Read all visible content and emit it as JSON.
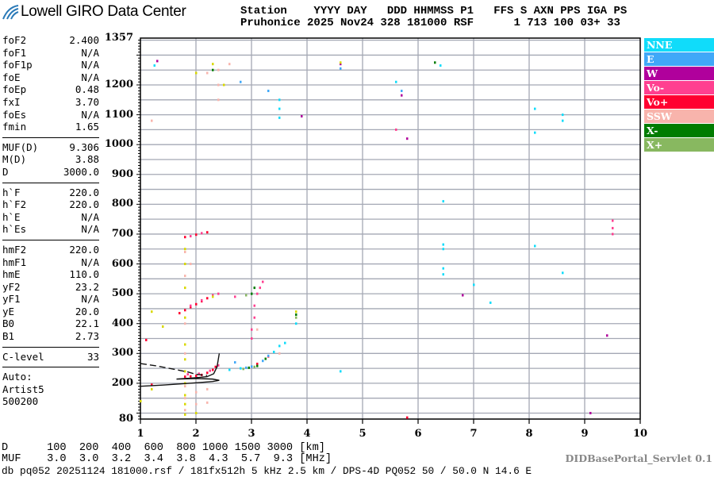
{
  "header": {
    "brand": "Lowell GIRO Data Center",
    "line1": "Station    YYYY DAY   DDD HHMMSS P1   FFS S AXN PPS IGA PS",
    "line2": "Pruhonice 2025 Nov24 328 181000 RSF      1 713 100 03+ 33"
  },
  "params": [
    [
      {
        "k": "foF2",
        "v": "2.400"
      },
      {
        "k": "foF1",
        "v": "N/A"
      },
      {
        "k": "foF1p",
        "v": "N/A"
      },
      {
        "k": "foE",
        "v": "N/A"
      },
      {
        "k": "foEp",
        "v": "0.48"
      },
      {
        "k": "fxI",
        "v": "3.70"
      },
      {
        "k": "foEs",
        "v": "N/A"
      },
      {
        "k": "fmin",
        "v": "1.65"
      }
    ],
    [
      {
        "k": "MUF(D)",
        "v": "9.306"
      },
      {
        "k": "M(D)",
        "v": "3.88"
      },
      {
        "k": "D",
        "v": "3000.0"
      }
    ],
    [
      {
        "k": "h`F",
        "v": "220.0"
      },
      {
        "k": "h`F2",
        "v": "220.0"
      },
      {
        "k": "h`E",
        "v": "N/A"
      },
      {
        "k": "h`Es",
        "v": "N/A"
      }
    ],
    [
      {
        "k": "hmF2",
        "v": "220.0"
      },
      {
        "k": "hmF1",
        "v": "N/A"
      },
      {
        "k": "hmE",
        "v": "110.0"
      },
      {
        "k": "yF2",
        "v": "23.2"
      },
      {
        "k": "yF1",
        "v": "N/A"
      },
      {
        "k": "yE",
        "v": "20.0"
      },
      {
        "k": "B0",
        "v": "22.1"
      },
      {
        "k": "B1",
        "v": "2.73"
      }
    ],
    [
      {
        "k": "C-level",
        "v": "33"
      }
    ],
    [
      {
        "k": "Auto:",
        "v": ""
      },
      {
        "k": "Artist5",
        "v": ""
      },
      {
        "k": "500200",
        "v": ""
      }
    ]
  ],
  "footer": {
    "d_row": "D      100  200  400  600  800 1000 1500 3000 [km]",
    "muf_row": "MUF    3.0  3.0  3.2  3.4  3.8  4.3  5.7  9.3 [MHz]",
    "info": "db pq052 20251124 181000.rsf / 181fx512h 5 kHz 2.5 km / DPS-4D PQ052 50 / 50.0 N 14.6 E",
    "servlet": "DIDBasePortal_Servlet 0.1"
  },
  "chart_data": {
    "type": "scatter",
    "xlim": [
      1,
      10
    ],
    "ylim": [
      80,
      1357
    ],
    "x_ticks": [
      "1",
      "2",
      "3",
      "4",
      "5",
      "6",
      "7",
      "8",
      "9",
      "10"
    ],
    "y_ticks": [
      "1357",
      "1200",
      "1100",
      "1000",
      "900",
      "800",
      "700",
      "600",
      "500",
      "400",
      "300",
      "200",
      "80"
    ],
    "grid": true,
    "legend_position": "right",
    "legend": [
      {
        "name": "NNE",
        "color": "#10dcfa"
      },
      {
        "name": "E",
        "color": "#40a8f8"
      },
      {
        "name": "W",
        "color": "#b0009c"
      },
      {
        "name": "Vo-",
        "color": "#ff4090"
      },
      {
        "name": "Vo+",
        "color": "#ff0030"
      },
      {
        "name": "SSW",
        "color": "#f8b4ac"
      },
      {
        "name": "X-",
        "color": "#007c00"
      },
      {
        "name": "X+",
        "color": "#88b860"
      }
    ],
    "series": [
      {
        "name": "Vo+",
        "color": "#ff0030",
        "points": [
          [
            1.8,
            222
          ],
          [
            1.9,
            223
          ],
          [
            2.0,
            225
          ],
          [
            2.1,
            228
          ],
          [
            2.2,
            235
          ],
          [
            2.3,
            245
          ],
          [
            2.35,
            255
          ],
          [
            1.7,
            435
          ],
          [
            1.8,
            445
          ],
          [
            1.9,
            455
          ],
          [
            2.0,
            465
          ],
          [
            2.1,
            475
          ],
          [
            2.2,
            485
          ],
          [
            2.3,
            492
          ],
          [
            1.8,
            690
          ],
          [
            2.0,
            698
          ],
          [
            2.2,
            706
          ],
          [
            1.1,
            345
          ],
          [
            1.2,
            195
          ],
          [
            3.1,
            265
          ],
          [
            3.3,
            290
          ],
          [
            5.8,
            85
          ]
        ]
      },
      {
        "name": "Vo-",
        "color": "#ff4090",
        "points": [
          [
            1.85,
            230
          ],
          [
            2.05,
            232
          ],
          [
            2.25,
            242
          ],
          [
            2.4,
            260
          ],
          [
            1.9,
            460
          ],
          [
            2.1,
            478
          ],
          [
            2.3,
            495
          ],
          [
            2.4,
            500
          ],
          [
            1.9,
            693
          ],
          [
            2.1,
            703
          ],
          [
            3.0,
            350
          ],
          [
            3.0,
            380
          ],
          [
            3.05,
            420
          ],
          [
            3.05,
            460
          ],
          [
            3.1,
            500
          ],
          [
            3.15,
            520
          ],
          [
            3.2,
            540
          ],
          [
            9.5,
            745
          ],
          [
            9.5,
            720
          ],
          [
            9.5,
            700
          ],
          [
            5.6,
            1050
          ],
          [
            2.7,
            490
          ]
        ]
      },
      {
        "name": "NNE",
        "color": "#10dcfa",
        "points": [
          [
            2.6,
            245
          ],
          [
            2.8,
            250
          ],
          [
            3.4,
            305
          ],
          [
            3.5,
            325
          ],
          [
            3.6,
            335
          ],
          [
            6.45,
            810
          ],
          [
            6.45,
            665
          ],
          [
            6.45,
            650
          ],
          [
            6.45,
            585
          ],
          [
            6.45,
            565
          ],
          [
            8.6,
            1100
          ],
          [
            8.6,
            1080
          ],
          [
            5.6,
            1210
          ],
          [
            6.4,
            1265
          ],
          [
            8.1,
            1120
          ],
          [
            8.1,
            1040
          ],
          [
            3.5,
            1150
          ],
          [
            3.5,
            1120
          ],
          [
            3.5,
            1090
          ],
          [
            8.1,
            660
          ],
          [
            8.6,
            570
          ],
          [
            7.0,
            530
          ],
          [
            7.3,
            470
          ],
          [
            4.6,
            240
          ],
          [
            1.25,
            1265
          ],
          [
            3.8,
            400
          ]
        ]
      },
      {
        "name": "E",
        "color": "#40a8f8",
        "points": [
          [
            2.9,
            252
          ],
          [
            3.0,
            256
          ],
          [
            3.2,
            275
          ],
          [
            3.3,
            292
          ],
          [
            2.7,
            270
          ],
          [
            5.7,
            1180
          ],
          [
            3.3,
            1180
          ],
          [
            2.8,
            1210
          ],
          [
            4.6,
            1255
          ]
        ]
      },
      {
        "name": "W",
        "color": "#b0009c",
        "points": [
          [
            9.4,
            360
          ],
          [
            6.8,
            495
          ],
          [
            5.7,
            1165
          ],
          [
            5.8,
            1020
          ],
          [
            9.1,
            100
          ],
          [
            3.9,
            1095
          ],
          [
            4.6,
            1270
          ],
          [
            1.3,
            1280
          ]
        ]
      },
      {
        "name": "SSW",
        "color": "#f8b4ac",
        "points": [
          [
            1.8,
            110
          ],
          [
            1.8,
            150
          ],
          [
            1.8,
            190
          ],
          [
            1.8,
            300
          ],
          [
            1.8,
            400
          ],
          [
            1.8,
            560
          ],
          [
            1.8,
            640
          ],
          [
            2.0,
            130
          ],
          [
            2.0,
            170
          ],
          [
            2.4,
            1150
          ],
          [
            2.4,
            1200
          ],
          [
            2.4,
            1250
          ],
          [
            2.6,
            1270
          ],
          [
            2.2,
            1240
          ],
          [
            1.9,
            600
          ],
          [
            2.2,
            135
          ],
          [
            2.2,
            180
          ],
          [
            3.1,
            380
          ],
          [
            3.5,
            300
          ],
          [
            1.2,
            1080
          ]
        ]
      },
      {
        "name": "X-",
        "color": "#007c00",
        "points": [
          [
            2.95,
            252
          ],
          [
            3.1,
            258
          ],
          [
            3.25,
            282
          ],
          [
            3.0,
            500
          ],
          [
            3.05,
            520
          ],
          [
            3.8,
            430
          ],
          [
            2.3,
            1250
          ],
          [
            6.3,
            1275
          ]
        ]
      },
      {
        "name": "X+",
        "color": "#88b860",
        "points": [
          [
            2.85,
            248
          ],
          [
            3.05,
            255
          ],
          [
            2.9,
            495
          ],
          [
            3.8,
            420
          ]
        ]
      },
      {
        "color": "#d8d800",
        "points": [
          [
            1.8,
            95
          ],
          [
            1.8,
            130
          ],
          [
            1.8,
            160
          ],
          [
            1.8,
            200
          ],
          [
            1.8,
            240
          ],
          [
            1.8,
            280
          ],
          [
            1.8,
            330
          ],
          [
            1.8,
            420
          ],
          [
            1.8,
            520
          ],
          [
            1.8,
            600
          ],
          [
            1.8,
            650
          ],
          [
            2.0,
            100
          ],
          [
            2.3,
            490
          ],
          [
            1.4,
            390
          ],
          [
            1.2,
            440
          ],
          [
            1.2,
            180
          ],
          [
            2.0,
            1240
          ],
          [
            2.3,
            1270
          ],
          [
            2.5,
            1200
          ],
          [
            3.8,
            440
          ],
          [
            1.0,
            140
          ],
          [
            4.6,
            1275
          ]
        ]
      }
    ],
    "model_curves": [
      {
        "style": "dashed",
        "points": [
          [
            1.0,
            266
          ],
          [
            1.3,
            258
          ],
          [
            1.6,
            247
          ],
          [
            1.85,
            238
          ],
          [
            2.0,
            230
          ],
          [
            2.2,
            226
          ]
        ]
      },
      {
        "style": "solid",
        "points": [
          [
            1.0,
            190
          ],
          [
            1.4,
            194
          ],
          [
            1.8,
            199
          ],
          [
            2.1,
            203
          ],
          [
            2.3,
            206
          ],
          [
            2.42,
            210
          ],
          [
            2.3,
            214
          ],
          [
            2.0,
            216
          ],
          [
            1.65,
            214
          ],
          [
            1.9,
            217
          ],
          [
            2.2,
            222
          ],
          [
            2.32,
            232
          ],
          [
            2.38,
            255
          ],
          [
            2.42,
            300
          ]
        ]
      }
    ]
  }
}
